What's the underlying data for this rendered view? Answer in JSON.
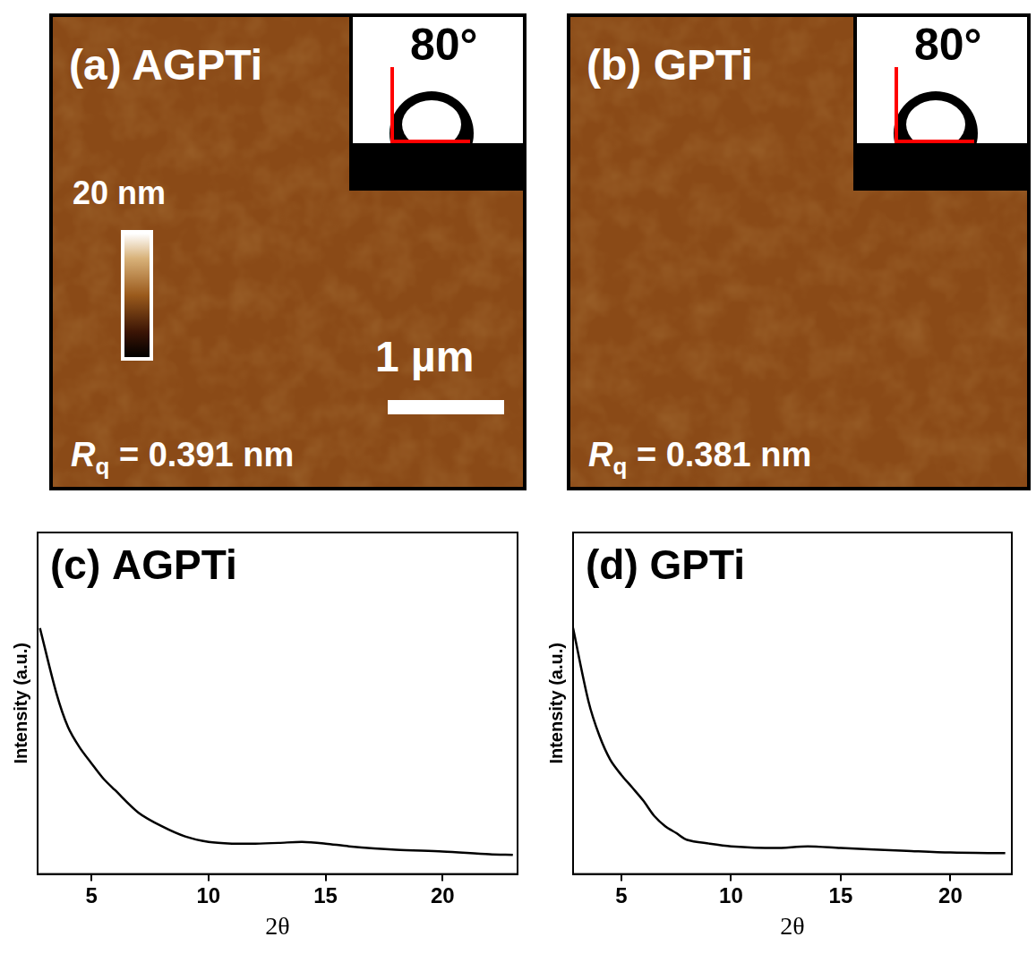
{
  "images": [
    {
      "label": "(a) AGPTi",
      "contact_angle": "80°",
      "colorbar_label": "20 nm",
      "scale_bar": "1 µm",
      "roughness": {
        "symbol": "R",
        "subscript": "q",
        "text": " = 0.391 nm"
      }
    },
    {
      "label": "(b) GPTi",
      "contact_angle": "80°",
      "roughness": {
        "symbol": "R",
        "subscript": "q",
        "text": " = 0.381 nm"
      }
    }
  ],
  "chart_data": [
    {
      "type": "line",
      "title": "(c) AGPTi",
      "x_label": "2θ",
      "y_label": "Intensity (a.u.)",
      "x": [
        2.8,
        3.5,
        4,
        4.5,
        5,
        5.5,
        6,
        7,
        8,
        9,
        10,
        11,
        12,
        13,
        14,
        15,
        16,
        18,
        20,
        22,
        23
      ],
      "values": [
        72,
        53,
        43,
        37,
        32.4,
        28,
        24.6,
        18,
        14,
        11,
        9.4,
        8.9,
        8.9,
        9.1,
        9.4,
        8.9,
        8.1,
        7.1,
        6.6,
        5.8,
        5.6
      ],
      "color": "#000000",
      "xlim": [
        2.7,
        23.2
      ],
      "xticks": [
        5,
        10,
        15,
        20
      ],
      "ylim": [
        0,
        100
      ],
      "tick_labels": "x",
      "grid": false
    },
    {
      "type": "line",
      "title": "(d) GPTi",
      "x_label": "2θ",
      "y_label": "Intensity (a.u.)",
      "x": [
        2.8,
        3.5,
        4,
        4.5,
        5,
        5.5,
        6,
        6.5,
        7,
        7.5,
        8,
        9,
        10,
        12,
        13.5,
        15,
        18,
        20,
        22.5
      ],
      "values": [
        72,
        50.6,
        40.5,
        33.4,
        29,
        25.3,
        21.5,
        17,
        14,
        12,
        10,
        8.9,
        8.1,
        7.6,
        8.1,
        7.6,
        6.8,
        6.3,
        6.1
      ],
      "color": "#000000",
      "xlim": [
        2.8,
        22.8
      ],
      "xticks": [
        5,
        10,
        15,
        20
      ],
      "ylim": [
        0,
        100
      ],
      "tick_labels": "x",
      "grid": false
    }
  ]
}
